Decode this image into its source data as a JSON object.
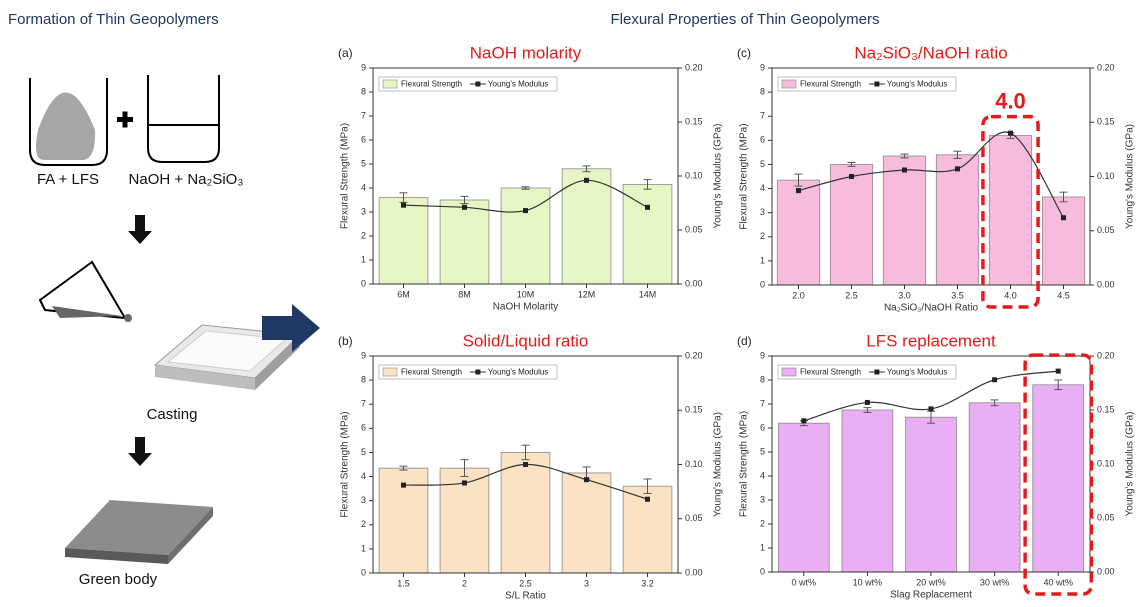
{
  "left_panel": {
    "heading": "Formation of Thin Geopolymers",
    "step1_left": "FA + LFS",
    "step1_right": "NaOH + Na₂SiO₃",
    "step2": "Casting",
    "step3": "Green body"
  },
  "right_heading": "Flexural Properties of Thin Geopolymers",
  "chart_data": [
    {
      "type": "bar",
      "panel": "(a)",
      "title": "NaOH molarity",
      "x_label": "NaOH Molarity",
      "y_label": "Flexural Strength (MPa)",
      "y2_label": "Young's Modulus (GPa)",
      "categories": [
        "6M",
        "8M",
        "10M",
        "12M",
        "14M"
      ],
      "series": [
        {
          "name": "Flexural Strength",
          "color": "#e6f5c4",
          "values": [
            3.6,
            3.5,
            4.0,
            4.8,
            4.15
          ],
          "errors": [
            0.2,
            0.15,
            0.05,
            0.12,
            0.2
          ]
        },
        {
          "name": "Young's Modulus",
          "type": "line",
          "axis": "y2",
          "color": "#333333",
          "values": [
            0.073,
            0.071,
            0.068,
            0.096,
            0.071
          ]
        }
      ],
      "ylim": [
        0,
        9
      ],
      "yticks": [
        0,
        1,
        2,
        3,
        4,
        5,
        6,
        7,
        8,
        9
      ],
      "y2lim": [
        0,
        0.2
      ],
      "y2ticks": [
        {
          "value": 0,
          "label": "0.00"
        },
        {
          "value": 0.05,
          "label": "0.05"
        },
        {
          "value": 0.1,
          "label": "0.10"
        },
        {
          "value": 0.15,
          "label": "0.15"
        },
        {
          "value": 0.2,
          "label": "0.20"
        }
      ]
    },
    {
      "type": "bar",
      "panel": "(b)",
      "title": "Solid/Liquid ratio",
      "x_label": "S/L Ratio",
      "y_label": "Flexural Strength (MPa)",
      "y2_label": "Young's Modulus (GPa)",
      "categories": [
        "1.5",
        "2",
        "2.5",
        "3",
        "3.2"
      ],
      "series": [
        {
          "name": "Flexural Strength",
          "color": "#fbe2c4",
          "values": [
            4.35,
            4.35,
            5.0,
            4.15,
            3.6
          ],
          "errors": [
            0.08,
            0.35,
            0.3,
            0.25,
            0.3
          ]
        },
        {
          "name": "Young's Modulus",
          "type": "line",
          "axis": "y2",
          "color": "#333333",
          "values": [
            0.081,
            0.083,
            0.1,
            0.086,
            0.068
          ]
        }
      ],
      "ylim": [
        0,
        9
      ],
      "yticks": [
        0,
        1,
        2,
        3,
        4,
        5,
        6,
        7,
        8,
        9
      ],
      "y2lim": [
        0,
        0.2
      ],
      "y2ticks": [
        {
          "value": 0,
          "label": "0.00"
        },
        {
          "value": 0.05,
          "label": "0.05"
        },
        {
          "value": 0.1,
          "label": "0.10"
        },
        {
          "value": 0.15,
          "label": "0.15"
        },
        {
          "value": 0.2,
          "label": "0.20"
        }
      ]
    },
    {
      "type": "bar",
      "panel": "(c)",
      "title": "Na₂SiO₃/NaOH ratio",
      "x_label": "Na₂SiO₃/NaOH Ratio",
      "y_label": "Flexural Strength (MPa)",
      "y2_label": "Young's Modulus (GPa)",
      "categories": [
        "2.0",
        "2.5",
        "3.0",
        "3.5",
        "4.0",
        "4.5"
      ],
      "series": [
        {
          "name": "Flexural Strength",
          "color": "#f7bcdd",
          "values": [
            4.35,
            5.0,
            5.35,
            5.4,
            6.2,
            3.65
          ],
          "errors": [
            0.25,
            0.08,
            0.08,
            0.15,
            0.12,
            0.2
          ]
        },
        {
          "name": "Young's Modulus",
          "type": "line",
          "axis": "y2",
          "color": "#333333",
          "values": [
            0.087,
            0.1,
            0.106,
            0.107,
            0.14,
            0.062
          ]
        }
      ],
      "ylim": [
        0,
        9
      ],
      "yticks": [
        0,
        1,
        2,
        3,
        4,
        5,
        6,
        7,
        8,
        9
      ],
      "y2lim": [
        0,
        0.2
      ],
      "y2ticks": [
        {
          "value": 0,
          "label": "0.00"
        },
        {
          "value": 0.05,
          "label": "0.05"
        },
        {
          "value": 0.1,
          "label": "0.10"
        },
        {
          "value": 0.15,
          "label": "0.15"
        },
        {
          "value": 0.2,
          "label": "0.20"
        }
      ],
      "annotation": "4.0",
      "highlight": "4.0"
    },
    {
      "type": "bar",
      "panel": "(d)",
      "title": "LFS replacement",
      "x_label": "Slag Replacement",
      "y_label": "Flexural Strength (MPa)",
      "y2_label": "Young's Modulus (GPa)",
      "categories": [
        "0 wt%",
        "10 wt%",
        "20 wt%",
        "30 wt%",
        "40 wt%"
      ],
      "series": [
        {
          "name": "Flexural Strength",
          "color": "#e9aef3",
          "values": [
            6.2,
            6.75,
            6.45,
            7.05,
            7.8
          ],
          "errors": [
            0.1,
            0.1,
            0.25,
            0.12,
            0.2
          ]
        },
        {
          "name": "Young's Modulus",
          "type": "line",
          "axis": "y2",
          "color": "#333333",
          "values": [
            0.14,
            0.157,
            0.151,
            0.178,
            0.186
          ]
        }
      ],
      "ylim": [
        0,
        9
      ],
      "yticks": [
        0,
        1,
        2,
        3,
        4,
        5,
        6,
        7,
        8,
        9
      ],
      "y2lim": [
        0,
        0.2
      ],
      "y2ticks": [
        {
          "value": 0,
          "label": "0.00"
        },
        {
          "value": 0.05,
          "label": "0.05"
        },
        {
          "value": 0.1,
          "label": "0.10"
        },
        {
          "value": 0.15,
          "label": "0.15"
        },
        {
          "value": 0.2,
          "label": "0.20"
        }
      ],
      "highlight": "40 wt%"
    }
  ]
}
